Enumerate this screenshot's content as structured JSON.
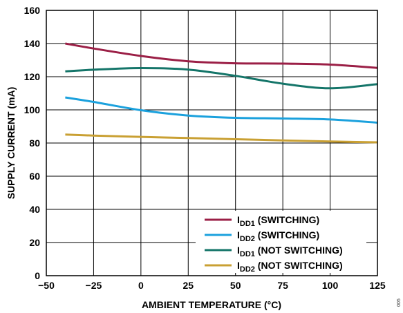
{
  "chart_data": {
    "type": "line",
    "xlabel": "AMBIENT TEMPERATURE (°C)",
    "ylabel": "SUPPLY CURRENT (mA)",
    "xlim": [
      -50,
      125
    ],
    "ylim": [
      0,
      160
    ],
    "x_ticks": [
      -50,
      -25,
      0,
      25,
      50,
      75,
      100,
      125
    ],
    "x_tick_labels": [
      "−50",
      "−25",
      "0",
      "25",
      "50",
      "75",
      "100",
      "125"
    ],
    "y_ticks": [
      0,
      20,
      40,
      60,
      80,
      100,
      120,
      140,
      160
    ],
    "y_tick_labels": [
      "0",
      "20",
      "40",
      "60",
      "80",
      "100",
      "120",
      "140",
      "160"
    ],
    "grid": true,
    "legend_position": "bottom-right",
    "series": [
      {
        "name": "IDD1 (SWITCHING)",
        "label_main": "I",
        "label_sub": "DD1",
        "label_rest": " (SWITCHING)",
        "color": "#9b1f46",
        "x": [
          -40,
          -25,
          0,
          25,
          50,
          75,
          100,
          125
        ],
        "y": [
          140,
          137,
          132.5,
          129.3,
          128.1,
          127.9,
          127.3,
          125.3
        ]
      },
      {
        "name": "IDD2 (SWITCHING)",
        "label_main": "I",
        "label_sub": "DD2",
        "label_rest": " (SWITCHING)",
        "color": "#1ba1dd",
        "x": [
          -40,
          -25,
          0,
          25,
          50,
          75,
          100,
          125
        ],
        "y": [
          107.5,
          104.8,
          99.8,
          96.6,
          95.2,
          94.8,
          94.2,
          92.3
        ]
      },
      {
        "name": "IDD1 (NOT SWITCHING)",
        "label_main": "I",
        "label_sub": "DD1",
        "label_rest": " (NOT SWITCHING)",
        "color": "#147569",
        "x": [
          -40,
          -25,
          0,
          25,
          50,
          75,
          100,
          125
        ],
        "y": [
          123.2,
          124.2,
          125.2,
          124.3,
          120.5,
          115.8,
          113,
          115.5
        ]
      },
      {
        "name": "IDD2 (NOT SWITCHING)",
        "label_main": "I",
        "label_sub": "DD2",
        "label_rest": " (NOT SWITCHING)",
        "color": "#c9a033",
        "x": [
          -40,
          -25,
          0,
          25,
          50,
          75,
          100,
          125
        ],
        "y": [
          85.1,
          84.5,
          83.7,
          83,
          82.3,
          81.6,
          80.9,
          80.4
        ]
      }
    ],
    "side_code": "005"
  }
}
